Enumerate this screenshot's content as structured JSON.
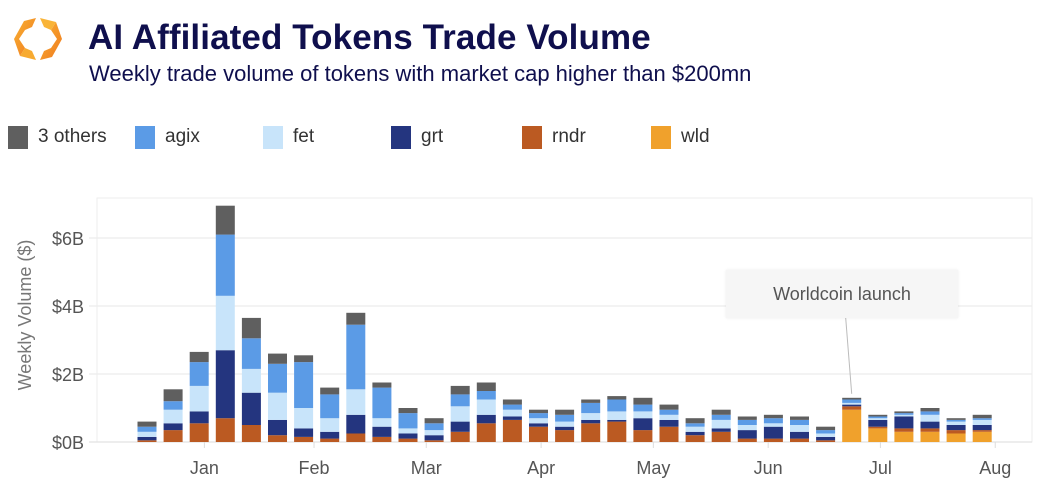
{
  "header": {
    "logo": "orange-hexagon-logo-icon",
    "title": "AI Affiliated Tokens Trade Volume",
    "subtitle": "Weekly trade volume of tokens with market cap higher than $200mn"
  },
  "legend": [
    {
      "key": "others",
      "label": "3 others",
      "color": "#5f5f5f"
    },
    {
      "key": "agix",
      "label": "agix",
      "color": "#5b9be6"
    },
    {
      "key": "fet",
      "label": "fet",
      "color": "#c8e4fa"
    },
    {
      "key": "grt",
      "label": "grt",
      "color": "#24357f"
    },
    {
      "key": "rndr",
      "label": "rndr",
      "color": "#bb5a22"
    },
    {
      "key": "wld",
      "label": "wld",
      "color": "#f0a12c"
    }
  ],
  "annotation": {
    "text": "Worldcoin launch",
    "target_week": 28
  },
  "chart_data": {
    "type": "bar",
    "stacked": true,
    "title": "AI Affiliated Tokens Trade Volume",
    "subtitle": "Weekly trade volume of tokens with market cap higher than $200mn",
    "xlabel": "",
    "ylabel": "Weekly Volume ($)",
    "ylim": [
      0,
      7.2
    ],
    "yunit": "$B",
    "yticks": [
      0,
      2,
      4,
      6
    ],
    "ytick_labels": [
      "$0B",
      "$2B",
      "$4B",
      "$6B"
    ],
    "xtick_labels": [
      "Jan",
      "Feb",
      "Mar",
      "Apr",
      "May",
      "Jun",
      "Jul",
      "Aug"
    ],
    "xtick_positions_week": [
      3.2,
      7.4,
      11.7,
      16.1,
      20.4,
      24.8,
      29.1,
      33.5
    ],
    "grid": true,
    "legend_position": "top",
    "stack_order": [
      "wld",
      "rndr",
      "grt",
      "fet",
      "agix",
      "others"
    ],
    "weeks": [
      1,
      2,
      3,
      4,
      5,
      6,
      7,
      8,
      9,
      10,
      11,
      12,
      13,
      14,
      15,
      16,
      17,
      18,
      19,
      20,
      21,
      22,
      23,
      24,
      25,
      26,
      27,
      28,
      29,
      30,
      31,
      32,
      33
    ],
    "series": [
      {
        "name": "wld",
        "values": [
          0,
          0,
          0,
          0,
          0,
          0,
          0,
          0,
          0,
          0,
          0,
          0,
          0,
          0,
          0,
          0,
          0,
          0,
          0,
          0,
          0,
          0,
          0,
          0,
          0,
          0,
          0,
          0.95,
          0.4,
          0.3,
          0.3,
          0.25,
          0.3
        ]
      },
      {
        "name": "rndr",
        "values": [
          0.05,
          0.35,
          0.55,
          0.7,
          0.5,
          0.2,
          0.15,
          0.1,
          0.25,
          0.15,
          0.1,
          0.05,
          0.3,
          0.55,
          0.65,
          0.45,
          0.35,
          0.55,
          0.6,
          0.35,
          0.45,
          0.2,
          0.3,
          0.1,
          0.1,
          0.1,
          0.05,
          0.1,
          0.05,
          0.1,
          0.1,
          0.1,
          0.05
        ]
      },
      {
        "name": "grt",
        "values": [
          0.1,
          0.2,
          0.35,
          2.0,
          0.95,
          0.45,
          0.25,
          0.2,
          0.55,
          0.3,
          0.15,
          0.15,
          0.3,
          0.25,
          0.1,
          0.1,
          0.1,
          0.1,
          0.05,
          0.35,
          0.2,
          0.1,
          0.1,
          0.25,
          0.35,
          0.2,
          0.1,
          0.05,
          0.2,
          0.35,
          0.2,
          0.15,
          0.15
        ]
      },
      {
        "name": "fet",
        "values": [
          0.15,
          0.4,
          0.75,
          1.6,
          0.7,
          0.8,
          0.6,
          0.4,
          0.75,
          0.25,
          0.15,
          0.15,
          0.45,
          0.45,
          0.2,
          0.15,
          0.15,
          0.2,
          0.25,
          0.2,
          0.15,
          0.15,
          0.25,
          0.15,
          0.1,
          0.2,
          0.1,
          0.05,
          0.05,
          0.05,
          0.2,
          0.1,
          0.15
        ]
      },
      {
        "name": "agix",
        "values": [
          0.15,
          0.25,
          0.7,
          1.8,
          0.9,
          0.85,
          1.35,
          0.7,
          1.9,
          0.9,
          0.45,
          0.2,
          0.35,
          0.25,
          0.15,
          0.15,
          0.2,
          0.3,
          0.35,
          0.2,
          0.15,
          0.1,
          0.15,
          0.15,
          0.15,
          0.15,
          0.1,
          0.1,
          0.05,
          0.05,
          0.1,
          0.05,
          0.05
        ]
      },
      {
        "name": "3 others",
        "values": [
          0.15,
          0.35,
          0.3,
          0.85,
          0.6,
          0.3,
          0.2,
          0.2,
          0.35,
          0.15,
          0.15,
          0.15,
          0.25,
          0.25,
          0.15,
          0.1,
          0.15,
          0.1,
          0.1,
          0.2,
          0.15,
          0.15,
          0.15,
          0.1,
          0.1,
          0.1,
          0.1,
          0.05,
          0.05,
          0.05,
          0.1,
          0.05,
          0.1
        ]
      }
    ]
  }
}
